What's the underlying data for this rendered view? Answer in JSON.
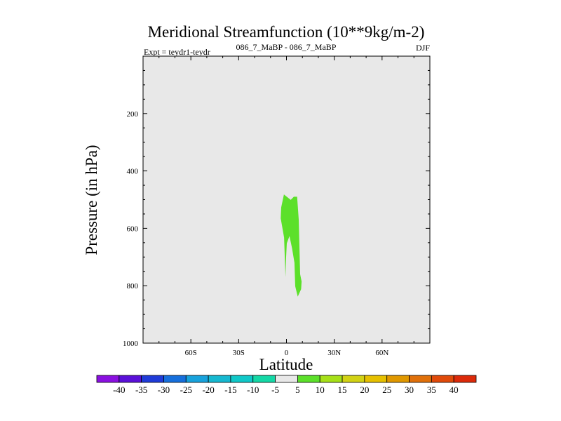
{
  "chart_data": {
    "type": "contour",
    "title": "Meridional Streamfunction (10**9kg/m-2)",
    "subtitle_left": "Expt = teydr1-teydr",
    "subtitle_center": "086_7_MaBP - 086_7_MaBP",
    "subtitle_right": "DJF",
    "xlabel": "Latitude",
    "ylabel": "Pressure (in hPa)",
    "xlim": [
      -90,
      90
    ],
    "ylim": [
      1000,
      0
    ],
    "x_ticks": [
      {
        "value": -60,
        "label": "60S"
      },
      {
        "value": -30,
        "label": "30S"
      },
      {
        "value": 0,
        "label": "0"
      },
      {
        "value": 30,
        "label": "30N"
      },
      {
        "value": 60,
        "label": "60N"
      }
    ],
    "y_ticks": [
      {
        "value": 200,
        "label": "200"
      },
      {
        "value": 400,
        "label": "400"
      },
      {
        "value": 600,
        "label": "600"
      },
      {
        "value": 800,
        "label": "800"
      },
      {
        "value": 1000,
        "label": "1000"
      }
    ],
    "background_level_color": "#e8e8e8",
    "filled_regions": [
      {
        "level": "5 to 10",
        "color": "#5ce02a",
        "polygon": [
          [
            -3.6,
            565
          ],
          [
            -3.3,
            527
          ],
          [
            -1.6,
            482
          ],
          [
            2.7,
            501
          ],
          [
            4.6,
            490
          ],
          [
            6.7,
            490
          ],
          [
            7.7,
            570
          ],
          [
            8.6,
            760
          ],
          [
            9.5,
            785
          ],
          [
            9.2,
            812
          ],
          [
            7.1,
            838
          ],
          [
            5.5,
            802
          ],
          [
            5.0,
            720
          ],
          [
            3.5,
            670
          ],
          [
            1.9,
            627
          ],
          [
            0.2,
            652
          ],
          [
            -0.2,
            700
          ],
          [
            -0.6,
            770
          ],
          [
            -1.5,
            632
          ]
        ]
      }
    ],
    "colorbar": {
      "labels": [
        "-40",
        "-35",
        "-30",
        "-25",
        "-20",
        "-15",
        "-10",
        "-5",
        "5",
        "10",
        "15",
        "20",
        "25",
        "30",
        "35",
        "40"
      ],
      "colors": [
        "#8a10e0",
        "#5a10d8",
        "#1f3bd8",
        "#166fdc",
        "#18a2dc",
        "#16b8d0",
        "#10c8c8",
        "#14d8a6",
        "#e8e8e8",
        "#5ce02a",
        "#a6e018",
        "#d2d214",
        "#e6c000",
        "#e09800",
        "#e0700a",
        "#e04a0a",
        "#dc2a0a"
      ]
    }
  }
}
